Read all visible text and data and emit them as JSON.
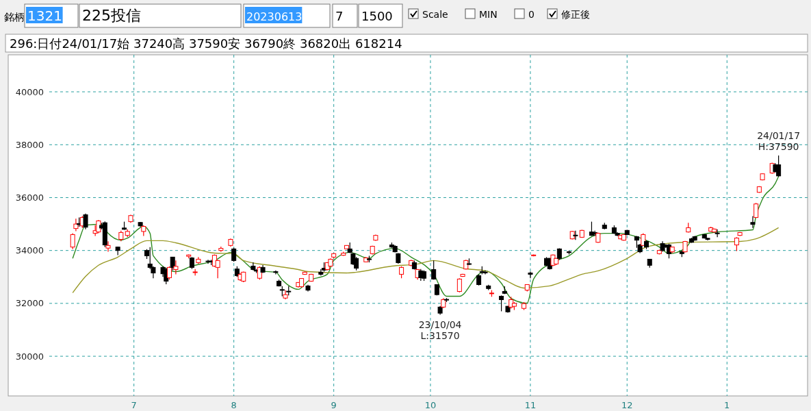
{
  "chart_data": {
    "type": "candlestick",
    "title": "296:日付24/01/17始 37240高 37590安 36790終 36820出 618214",
    "annotations": [
      "銘柄",
      "1321",
      "225投信",
      "20230613",
      "7",
      "1500",
      "Scale",
      "MIN",
      "0",
      "修正後",
      {
        "text": "23/10/04\nL:31570",
        "x": "2023-10-04",
        "y": 31570
      },
      {
        "text": "24/01/17\nH:37590",
        "x": "2024-01-17",
        "y": 37590
      }
    ],
    "x": [
      "2023-06-12",
      "2023-06-13",
      "2023-06-14",
      "2023-06-15",
      "2023-06-16",
      "2023-06-19",
      "2023-06-20",
      "2023-06-21",
      "2023-06-22",
      "2023-06-23",
      "2023-06-26",
      "2023-06-27",
      "2023-06-28",
      "2023-06-29",
      "2023-06-30",
      "2023-07-03",
      "2023-07-04",
      "2023-07-05",
      "2023-07-06",
      "2023-07-07",
      "2023-07-10",
      "2023-07-11",
      "2023-07-12",
      "2023-07-13",
      "2023-07-14",
      "2023-07-18",
      "2023-07-19",
      "2023-07-20",
      "2023-07-21",
      "2023-07-24",
      "2023-07-25",
      "2023-07-26",
      "2023-07-27",
      "2023-07-28",
      "2023-07-31",
      "2023-08-01",
      "2023-08-02",
      "2023-08-03",
      "2023-08-04",
      "2023-08-07",
      "2023-08-08",
      "2023-08-09",
      "2023-08-10",
      "2023-08-14",
      "2023-08-15",
      "2023-08-16",
      "2023-08-17",
      "2023-08-18",
      "2023-08-21",
      "2023-08-22",
      "2023-08-23",
      "2023-08-24",
      "2023-08-25",
      "2023-08-28",
      "2023-08-29",
      "2023-08-30",
      "2023-08-31",
      "2023-09-01",
      "2023-09-04",
      "2023-09-05",
      "2023-09-06",
      "2023-09-07",
      "2023-09-08",
      "2023-09-11",
      "2023-09-12",
      "2023-09-13",
      "2023-09-14",
      "2023-09-19",
      "2023-09-20",
      "2023-09-21",
      "2023-09-22",
      "2023-09-25",
      "2023-09-26",
      "2023-09-27",
      "2023-09-28",
      "2023-09-29",
      "2023-10-02",
      "2023-10-03",
      "2023-10-04",
      "2023-10-05",
      "2023-10-06",
      "2023-10-10",
      "2023-10-11",
      "2023-10-12",
      "2023-10-13",
      "2023-10-16",
      "2023-10-17",
      "2023-10-18",
      "2023-10-19",
      "2023-10-20",
      "2023-10-23",
      "2023-10-24",
      "2023-10-25",
      "2023-10-26",
      "2023-10-27",
      "2023-10-30",
      "2023-10-31",
      "2023-11-01",
      "2023-11-02",
      "2023-11-06",
      "2023-11-07",
      "2023-11-08",
      "2023-11-09",
      "2023-11-10",
      "2023-11-13",
      "2023-11-14",
      "2023-11-15",
      "2023-11-17",
      "2023-11-20",
      "2023-11-21",
      "2023-11-22",
      "2023-11-24",
      "2023-11-27",
      "2023-11-28",
      "2023-11-29",
      "2023-11-30",
      "2023-12-01",
      "2023-12-04",
      "2023-12-05",
      "2023-12-06",
      "2023-12-07",
      "2023-12-08",
      "2023-12-11",
      "2023-12-12",
      "2023-12-13",
      "2023-12-14",
      "2023-12-15",
      "2023-12-18",
      "2023-12-19",
      "2023-12-20",
      "2023-12-21",
      "2023-12-22",
      "2023-12-25",
      "2023-12-26",
      "2023-12-27",
      "2023-12-28",
      "2023-12-29",
      "2024-01-04",
      "2024-01-05",
      "2024-01-09",
      "2024-01-10",
      "2024-01-11",
      "2024-01-12",
      "2024-01-15",
      "2024-01-16",
      "2024-01-17"
    ],
    "ohlc": [
      [
        34130,
        34650,
        34050,
        34600
      ],
      [
        34830,
        35200,
        34730,
        35000
      ],
      [
        35020,
        35250,
        34900,
        34980
      ],
      [
        34930,
        35300,
        34850,
        35250
      ],
      [
        35350,
        35400,
        34800,
        34880
      ],
      [
        34650,
        34950,
        34550,
        34750
      ],
      [
        34700,
        35150,
        34650,
        35120
      ],
      [
        34950,
        35050,
        34800,
        34850
      ],
      [
        35050,
        35100,
        34130,
        34210
      ],
      [
        34090,
        34350,
        33950,
        34190
      ],
      [
        34130,
        34150,
        33820,
        34000
      ],
      [
        34420,
        34750,
        34350,
        34680
      ],
      [
        34850,
        35090,
        34780,
        34800
      ],
      [
        34570,
        34800,
        34500,
        34720
      ],
      [
        35090,
        35350,
        35050,
        35320
      ],
      [
        35060,
        35080,
        34900,
        34930
      ],
      [
        34720,
        34950,
        34550,
        34910
      ],
      [
        34000,
        34050,
        33680,
        33800
      ],
      [
        33490,
        34130,
        33300,
        33360
      ],
      [
        33360,
        33400,
        32950,
        33150
      ],
      [
        33360,
        33400,
        33000,
        33120
      ],
      [
        33280,
        33350,
        32720,
        32840
      ],
      [
        32970,
        33400,
        32900,
        33360
      ],
      [
        33750,
        33750,
        33250,
        33360
      ],
      [
        33280,
        33620,
        33100,
        33400
      ],
      [
        33780,
        33850,
        33700,
        33830
      ],
      [
        33720,
        33750,
        33300,
        33360
      ],
      [
        33170,
        33300,
        33050,
        33190
      ],
      [
        33540,
        33750,
        33500,
        33670
      ],
      [
        33600,
        33650,
        33500,
        33580
      ],
      [
        33600,
        33650,
        33450,
        33580
      ],
      [
        33410,
        33850,
        33380,
        33820
      ],
      [
        33360,
        33650,
        32950,
        33620
      ],
      [
        34000,
        34150,
        33950,
        34080
      ],
      [
        34190,
        34450,
        34150,
        34420
      ],
      [
        34060,
        34100,
        33580,
        33620
      ],
      [
        33300,
        33400,
        33000,
        33050
      ],
      [
        32890,
        33150,
        32850,
        33100
      ],
      [
        32840,
        33200,
        32800,
        33180
      ],
      [
        33410,
        33550,
        33250,
        33280
      ],
      [
        33250,
        33300,
        33150,
        33220
      ],
      [
        32950,
        33400,
        32900,
        33360
      ],
      [
        33360,
        33450,
        33150,
        33180
      ],
      [
        33200,
        33250,
        33100,
        33170
      ],
      [
        32840,
        32900,
        32640,
        32660
      ],
      [
        32520,
        32650,
        32270,
        32500
      ],
      [
        32200,
        32500,
        32150,
        32330
      ],
      [
        32460,
        32650,
        32300,
        32440
      ],
      [
        32630,
        32800,
        32600,
        32790
      ],
      [
        32630,
        32950,
        32600,
        32940
      ],
      [
        33100,
        33200,
        33080,
        33180
      ],
      [
        32660,
        32700,
        32450,
        32500
      ],
      [
        32840,
        33120,
        32820,
        33100
      ],
      [
        33180,
        33300,
        33050,
        33100
      ],
      [
        33330,
        33550,
        33200,
        33260
      ],
      [
        33280,
        33560,
        33250,
        33540
      ],
      [
        33410,
        33700,
        33380,
        33670
      ],
      [
        33750,
        33900,
        33700,
        33880
      ],
      [
        33820,
        33950,
        33800,
        33900
      ],
      [
        34060,
        34200,
        34050,
        34190
      ],
      [
        34060,
        34300,
        33900,
        33930
      ],
      [
        33880,
        33900,
        33450,
        33490
      ],
      [
        33700,
        33750,
        33250,
        33330
      ],
      [
        33570,
        33750,
        33550,
        33720
      ],
      [
        33680,
        33800,
        33550,
        33660
      ],
      [
        33880,
        34180,
        33850,
        34160
      ],
      [
        34390,
        34600,
        34370,
        34570
      ],
      [
        34210,
        34300,
        34100,
        34130
      ],
      [
        34160,
        34200,
        33930,
        33950
      ],
      [
        33880,
        33900,
        33500,
        33540
      ],
      [
        33100,
        33400,
        32950,
        33360
      ],
      [
        33440,
        33650,
        33400,
        33620
      ],
      [
        33540,
        33620,
        33280,
        33310
      ],
      [
        32970,
        33300,
        32900,
        33280
      ],
      [
        33230,
        33300,
        32850,
        32970
      ],
      [
        33200,
        33250,
        32850,
        32950
      ],
      [
        33280,
        33620,
        32900,
        32920
      ],
      [
        32710,
        32720,
        32300,
        32330
      ],
      [
        31860,
        31900,
        31570,
        31630
      ],
      [
        31860,
        32200,
        31820,
        32140
      ],
      [
        32150,
        32200,
        32050,
        32130
      ],
      [
        32450,
        32950,
        32420,
        32920
      ],
      [
        33020,
        33120,
        33000,
        33100
      ],
      [
        33300,
        33650,
        33280,
        33620
      ],
      [
        33500,
        33700,
        33450,
        33480
      ],
      [
        33050,
        33100,
        32680,
        32710
      ],
      [
        33200,
        33400,
        33100,
        33170
      ],
      [
        33180,
        33250,
        33100,
        33160
      ],
      [
        32660,
        32700,
        32500,
        32560
      ],
      [
        32370,
        32500,
        32250,
        32390
      ],
      [
        32270,
        32300,
        31700,
        32140
      ],
      [
        32450,
        32650,
        32350,
        32380
      ],
      [
        31890,
        31900,
        31650,
        31680
      ],
      [
        31860,
        32250,
        31800,
        32140
      ],
      [
        31890,
        32050,
        31750,
        32000
      ],
      [
        31810,
        32050,
        31750,
        31990
      ],
      [
        32500,
        32720,
        32450,
        32710
      ],
      [
        33150,
        33200,
        32950,
        33100
      ],
      [
        33800,
        33850,
        33780,
        33830
      ],
      [
        33700,
        33750,
        33400,
        33440
      ],
      [
        33700,
        33720,
        33280,
        33310
      ],
      [
        33440,
        33850,
        33400,
        33830
      ],
      [
        33490,
        33720,
        33450,
        33700
      ],
      [
        34060,
        34080,
        33650,
        33700
      ],
      [
        33950,
        34000,
        33850,
        33920
      ],
      [
        34440,
        34740,
        34420,
        34720
      ],
      [
        34580,
        34750,
        34400,
        34560
      ],
      [
        34500,
        34780,
        34480,
        34760
      ],
      [
        34700,
        35090,
        34550,
        34570
      ],
      [
        34680,
        34750,
        34550,
        34620
      ],
      [
        34310,
        34680,
        34290,
        34650
      ],
      [
        34960,
        35050,
        34800,
        34830
      ],
      [
        34860,
        34950,
        34630,
        34650
      ],
      [
        34650,
        34700,
        34550,
        34570
      ],
      [
        34440,
        34600,
        34420,
        34570
      ],
      [
        34390,
        34620,
        34370,
        34600
      ],
      [
        34760,
        34780,
        34580,
        34600
      ],
      [
        34520,
        34550,
        34100,
        34390
      ],
      [
        34210,
        34250,
        33900,
        33950
      ],
      [
        34190,
        34650,
        34170,
        34600
      ],
      [
        34340,
        34380,
        34050,
        34130
      ],
      [
        33670,
        33680,
        33350,
        33440
      ],
      [
        33880,
        34030,
        33850,
        34000
      ],
      [
        34260,
        34350,
        33950,
        34000
      ],
      [
        34210,
        34230,
        34100,
        34130
      ],
      [
        34210,
        34250,
        33700,
        33880
      ],
      [
        33950,
        34150,
        33900,
        34130
      ],
      [
        33950,
        34000,
        33750,
        33880
      ],
      [
        33950,
        34360,
        33930,
        34340
      ],
      [
        34700,
        35050,
        34680,
        34860
      ],
      [
        34440,
        34480,
        34290,
        34310
      ],
      [
        34520,
        34550,
        34370,
        34390
      ],
      [
        34600,
        34620,
        34450,
        34470
      ],
      [
        34460,
        34480,
        34380,
        34420
      ],
      [
        34730,
        34900,
        34710,
        34860
      ],
      [
        34700,
        34830,
        34680,
        34810
      ],
      [
        34660,
        34800,
        34500,
        34640
      ],
      [
        34210,
        34500,
        33980,
        34470
      ],
      [
        34570,
        34700,
        34550,
        34680
      ],
      [
        35060,
        35300,
        34850,
        34990
      ],
      [
        35250,
        35800,
        35230,
        35760
      ],
      [
        36200,
        36430,
        36180,
        36410
      ],
      [
        36670,
        36920,
        36650,
        36900
      ],
      [
        36930,
        37320,
        36900,
        37290
      ],
      [
        37240,
        37300,
        36950,
        36980
      ],
      [
        37240,
        37590,
        36790,
        36820
      ]
    ],
    "series": [
      {
        "type": "line",
        "color": "#2e8b22",
        "x": [
          "2023-06-12",
          "2023-06-14",
          "2023-06-16",
          "2023-06-21",
          "2023-06-23",
          "2023-06-27",
          "2023-06-29",
          "2023-07-04",
          "2023-07-06",
          "2023-07-07",
          "2023-07-14",
          "2023-07-19",
          "2023-07-26",
          "2023-07-31",
          "2023-08-03",
          "2023-08-08",
          "2023-08-14",
          "2023-08-16",
          "2023-08-21",
          "2023-08-24",
          "2023-08-30",
          "2023-09-01",
          "2023-09-06",
          "2023-09-12",
          "2023-09-14",
          "2023-09-20",
          "2023-09-25",
          "2023-10-02",
          "2023-10-06",
          "2023-10-10",
          "2023-10-16",
          "2023-10-18",
          "2023-10-23",
          "2023-10-26",
          "2023-10-31",
          "2023-11-02",
          "2023-11-08",
          "2023-11-13",
          "2023-11-20",
          "2023-11-24",
          "2023-11-29",
          "2023-12-04",
          "2023-12-11",
          "2023-12-14",
          "2023-12-19",
          "2023-12-22",
          "2023-12-29",
          "2024-01-09",
          "2024-01-10",
          "2024-01-12",
          "2024-01-16",
          "2024-01-17"
        ],
        "values": [
          33700,
          34390,
          34960,
          34990,
          34650,
          34390,
          34470,
          34910,
          34650,
          33800,
          33200,
          33410,
          33620,
          33930,
          33700,
          33230,
          33180,
          32890,
          32530,
          32840,
          33100,
          33620,
          33930,
          33700,
          33880,
          34080,
          33750,
          33100,
          32270,
          32270,
          33100,
          33230,
          32760,
          32190,
          32010,
          32920,
          33560,
          33800,
          34520,
          34650,
          34650,
          34520,
          34130,
          33880,
          34080,
          34520,
          34700,
          34780,
          35300,
          35940,
          36540,
          36800
        ]
      },
      {
        "type": "line",
        "color": "#9a9a28",
        "x": [
          "2023-06-12",
          "2023-06-16",
          "2023-06-20",
          "2023-06-26",
          "2023-06-30",
          "2023-07-05",
          "2023-07-10",
          "2023-07-14",
          "2023-07-26",
          "2023-08-01",
          "2023-08-04",
          "2023-08-14",
          "2023-08-21",
          "2023-08-24",
          "2023-09-05",
          "2023-09-08",
          "2023-09-19",
          "2023-09-27",
          "2023-10-02",
          "2023-10-12",
          "2023-10-18",
          "2023-10-24",
          "2023-10-30",
          "2023-11-07",
          "2023-11-13",
          "2023-11-17",
          "2023-11-22",
          "2023-12-01",
          "2023-12-07",
          "2023-12-13",
          "2023-12-19",
          "2024-01-05",
          "2024-01-10",
          "2024-01-17"
        ],
        "values": [
          32400,
          33020,
          33440,
          33750,
          34060,
          34370,
          34370,
          34290,
          33900,
          33880,
          33620,
          33410,
          33280,
          33200,
          33150,
          33180,
          33410,
          33490,
          33620,
          33310,
          33230,
          32890,
          32580,
          32660,
          32920,
          33100,
          33230,
          33700,
          34130,
          34260,
          34310,
          34340,
          34440,
          34860
        ]
      }
    ],
    "xlim": [
      "2023-05-23",
      "2024-01-26"
    ],
    "xticks": [
      {
        "value": "2023-07-01",
        "label": "7"
      },
      {
        "value": "2023-08-01",
        "label": "8"
      },
      {
        "value": "2023-09-01",
        "label": "9"
      },
      {
        "value": "2023-10-01",
        "label": "10"
      },
      {
        "value": "2023-11-01",
        "label": "11"
      },
      {
        "value": "2023-12-01",
        "label": "12"
      },
      {
        "value": "2024-01-01",
        "label": "1"
      }
    ],
    "ylim": [
      28500,
      41400
    ],
    "yticks": [
      30000,
      32000,
      34000,
      36000,
      38000,
      40000
    ],
    "grid": true
  }
}
